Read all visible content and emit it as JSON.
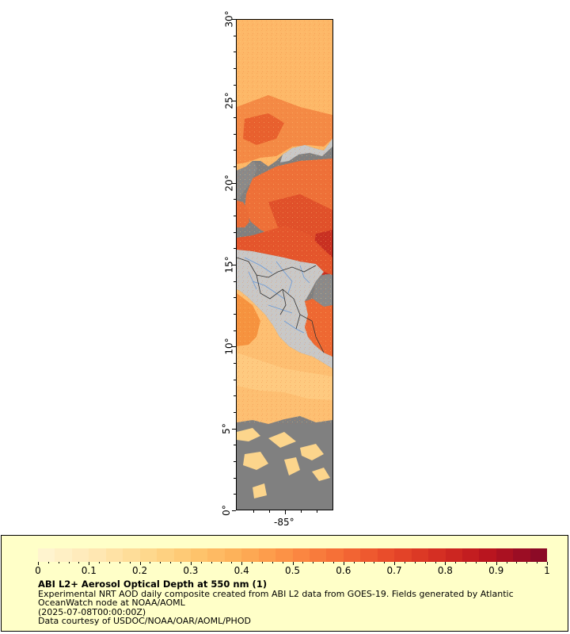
{
  "map": {
    "lat_ticks": [
      "0°",
      "5°",
      "10°",
      "15°",
      "20°",
      "25°",
      "30°"
    ],
    "lon_ticks": [
      "-85°"
    ],
    "colors": {
      "ocean_missing": "#808080",
      "land": "#c8c8c8",
      "rivers": "#6b9ad6",
      "borders": "#333333"
    }
  },
  "legend": {
    "ticks": [
      "0",
      "0.1",
      "0.2",
      "0.3",
      "0.4",
      "0.5",
      "0.6",
      "0.7",
      "0.8",
      "0.9",
      "1"
    ],
    "colors": [
      "#fff4cf",
      "#ffe7b3",
      "#fed98f",
      "#fec56e",
      "#fdad55",
      "#fc8c43",
      "#f56b35",
      "#e84a2a",
      "#d42d22",
      "#b8141f",
      "#8c0a26"
    ],
    "title": "ABI L2+ Aerosol Optical Depth at 550 nm (1)",
    "line1": "Experimental NRT AOD daily composite created from ABI L2 data from GOES-19. Fields generated by Atlantic",
    "line2": "OceanWatch node at NOAA/AOML",
    "line3": "(2025-07-08T00:00:00Z)",
    "line4": "Data courtesy of USDOC/NOAA/OAR/AOML/PHOD"
  }
}
